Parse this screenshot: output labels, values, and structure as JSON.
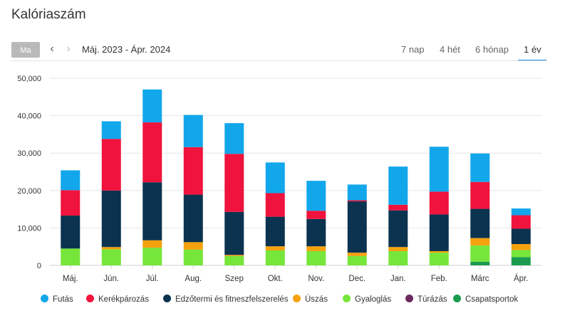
{
  "page_title": "Kalóriaszám",
  "toolbar": {
    "today_label": "Ma",
    "prev_icon": "chevron-left-icon",
    "next_icon": "chevron-right-icon",
    "range_label": "Máj. 2023 - Ápr. 2024",
    "tabs": [
      {
        "label": "7 nap",
        "active": false
      },
      {
        "label": "4 hét",
        "active": false
      },
      {
        "label": "6 hónap",
        "active": false
      },
      {
        "label": "1 év",
        "active": true
      }
    ],
    "accent_color": "#1e88e5"
  },
  "chart_data": {
    "type": "bar",
    "stacked": true,
    "title": "",
    "xlabel": "",
    "ylabel": "",
    "ylim": [
      0,
      50000
    ],
    "y_ticks": [
      "0",
      "10,000",
      "20,000",
      "30,000",
      "40,000",
      "50,000"
    ],
    "grid": true,
    "legend_position": "bottom",
    "categories": [
      "Máj.",
      "Jún.",
      "Júl.",
      "Aug.",
      "Szep",
      "Okt.",
      "Nov.",
      "Dec.",
      "Jan.",
      "Feb.",
      "Márc",
      "Ápr."
    ],
    "series": [
      {
        "name": "Csapatsportok",
        "color": "#1a9c50",
        "values": [
          0,
          0,
          0,
          0,
          0,
          0,
          0,
          0,
          0,
          0,
          1000,
          2200
        ]
      },
      {
        "name": "Túrázás",
        "color": "#6a2a5f",
        "values": [
          0,
          0,
          0,
          0,
          0,
          0,
          0,
          0,
          0,
          0,
          0,
          0
        ]
      },
      {
        "name": "Gyaloglás",
        "color": "#76e63a",
        "values": [
          4500,
          4300,
          4700,
          4200,
          2500,
          4000,
          3800,
          2500,
          3800,
          3400,
          4300,
          1900
        ]
      },
      {
        "name": "Úszás",
        "color": "#f5a20d",
        "values": [
          0,
          600,
          2000,
          2000,
          300,
          1100,
          1300,
          900,
          1100,
          400,
          2000,
          1600
        ]
      },
      {
        "name": "Edzőtermi és fitneszfelszerelés",
        "color": "#0b3350",
        "values": [
          8800,
          15100,
          15500,
          12700,
          11500,
          7900,
          7300,
          13700,
          9800,
          9800,
          7800,
          4100
        ]
      },
      {
        "name": "Kerékpározás",
        "color": "#f0133d",
        "values": [
          6800,
          13800,
          16000,
          12700,
          15500,
          6300,
          2200,
          300,
          1500,
          6100,
          7200,
          3600
        ]
      },
      {
        "name": "Futás",
        "color": "#12a7eb",
        "values": [
          5300,
          4700,
          8800,
          8600,
          8200,
          8200,
          8000,
          4200,
          10200,
          12000,
          7600,
          1800
        ]
      }
    ],
    "legend": [
      {
        "name": "Futás",
        "color": "#12a7eb"
      },
      {
        "name": "Kerékpározás",
        "color": "#f0133d"
      },
      {
        "name": "Edzőtermi és fitneszfelszerelés",
        "color": "#0b3350"
      },
      {
        "name": "Úszás",
        "color": "#f5a20d"
      },
      {
        "name": "Gyaloglás",
        "color": "#76e63a"
      },
      {
        "name": "Túrázás",
        "color": "#6a2a5f"
      },
      {
        "name": "Csapatsportok",
        "color": "#1a9c50"
      }
    ]
  }
}
